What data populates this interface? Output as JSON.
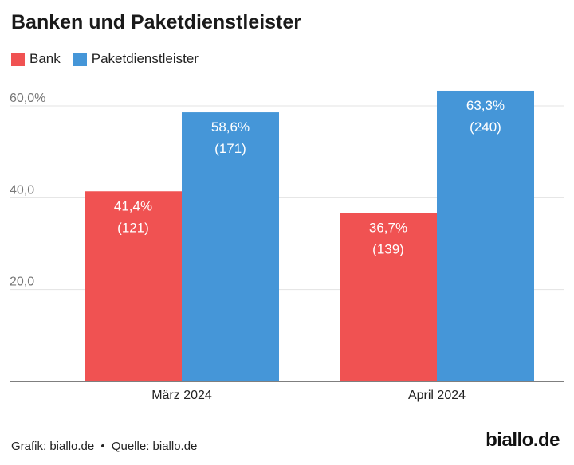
{
  "title": "Banken und Paketdienstleister",
  "legend": [
    {
      "name": "Bank",
      "color": "#f05252"
    },
    {
      "name": "Paketdienstleister",
      "color": "#4596d8"
    }
  ],
  "chart_data": {
    "type": "bar",
    "title": "Banken und Paketdienstleister",
    "categories": [
      "März 2024",
      "April 2024"
    ],
    "series": [
      {
        "name": "Bank",
        "color": "#f05252",
        "values": [
          41.4,
          36.7
        ],
        "labels": [
          "41,4%",
          "36,7%"
        ],
        "counts": [
          "(121)",
          "(139)"
        ]
      },
      {
        "name": "Paketdienstleister",
        "color": "#4596d8",
        "values": [
          58.6,
          63.3
        ],
        "labels": [
          "58,6%",
          "63,3%"
        ],
        "counts": [
          "(171)",
          "(240)"
        ]
      }
    ],
    "yticks": [
      20,
      40,
      60
    ],
    "ytick_labels": [
      "20,0",
      "40,0",
      "60,0%"
    ],
    "ylim": [
      0,
      60
    ],
    "xlabel": "",
    "ylabel": "",
    "grid": true
  },
  "footer": {
    "grafik": "Grafik: biallo.de",
    "separator": "•",
    "quelle": "Quelle: biallo.de"
  },
  "brand": "biallo.de"
}
